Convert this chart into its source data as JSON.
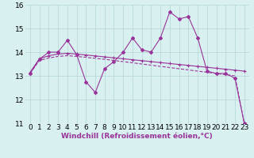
{
  "xlabel": "Windchill (Refroidissement éolien,°C)",
  "x": [
    0,
    1,
    2,
    3,
    4,
    5,
    6,
    7,
    8,
    9,
    10,
    11,
    12,
    13,
    14,
    15,
    16,
    17,
    18,
    19,
    20,
    21,
    22,
    23
  ],
  "line1": [
    13.1,
    13.7,
    14.0,
    14.0,
    14.5,
    13.9,
    12.75,
    12.3,
    13.3,
    13.6,
    14.0,
    14.6,
    14.1,
    14.0,
    14.6,
    15.7,
    15.4,
    15.5,
    14.6,
    13.2,
    13.1,
    13.1,
    12.9,
    11.0
  ],
  "line2": [
    13.15,
    13.72,
    13.85,
    13.92,
    13.95,
    13.92,
    13.88,
    13.84,
    13.8,
    13.76,
    13.72,
    13.68,
    13.64,
    13.6,
    13.56,
    13.52,
    13.48,
    13.44,
    13.4,
    13.36,
    13.32,
    13.28,
    13.24,
    13.2
  ],
  "line3": [
    13.1,
    13.65,
    13.75,
    13.82,
    13.85,
    13.82,
    13.78,
    13.74,
    13.7,
    13.65,
    13.6,
    13.55,
    13.5,
    13.45,
    13.4,
    13.35,
    13.3,
    13.25,
    13.2,
    13.15,
    13.1,
    13.05,
    13.0,
    11.0
  ],
  "line_color": "#993399",
  "bg_color": "#d8f0f0",
  "grid_color": "#b8dada",
  "ylim": [
    11,
    16
  ],
  "yticks": [
    11,
    12,
    13,
    14,
    15,
    16
  ],
  "tick_fontsize": 6.5,
  "label_fontsize": 6.5
}
